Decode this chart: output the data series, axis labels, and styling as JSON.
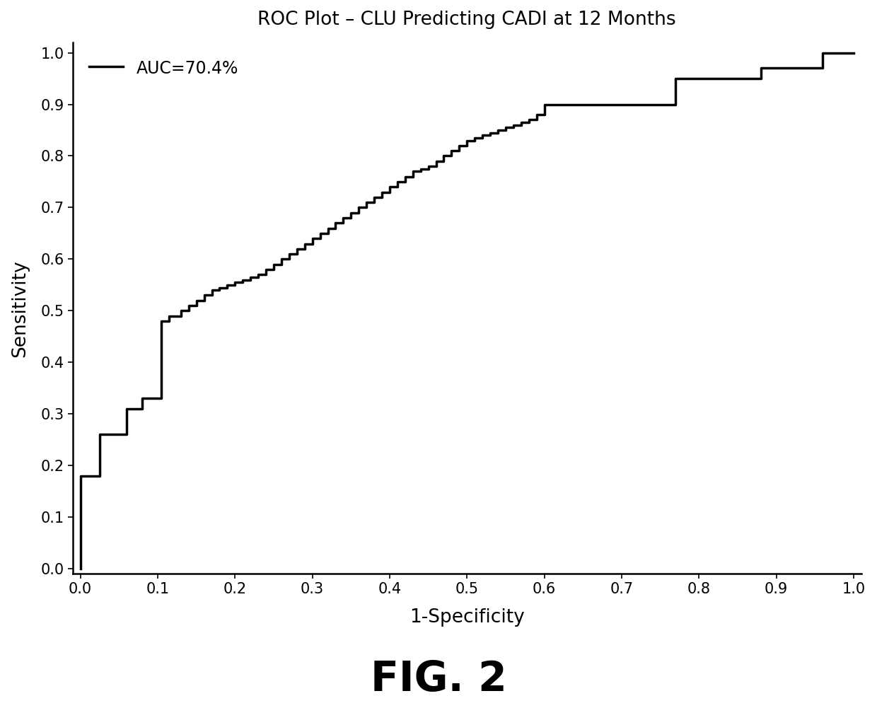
{
  "title": "ROC Plot – CLU Predicting CADI at 12 Months",
  "xlabel": "1-Specificity",
  "ylabel": "Sensitivity",
  "auc_label": "AUC=70.4%",
  "fig_label": "FIG. 2",
  "line_color": "#000000",
  "line_width": 2.5,
  "background_color": "#ffffff",
  "xlim": [
    0.0,
    1.0
  ],
  "ylim": [
    0.0,
    1.0
  ],
  "xticks": [
    0.0,
    0.1,
    0.2,
    0.3,
    0.4,
    0.5,
    0.6,
    0.7,
    0.8,
    0.9,
    1.0
  ],
  "yticks": [
    0.0,
    0.1,
    0.2,
    0.3,
    0.4,
    0.5,
    0.6,
    0.7,
    0.8,
    0.9,
    1.0
  ],
  "roc_fpr": [
    0.0,
    0.0,
    0.01,
    0.02,
    0.025,
    0.03,
    0.04,
    0.05,
    0.06,
    0.07,
    0.08,
    0.09,
    0.1,
    0.105,
    0.11,
    0.115,
    0.12,
    0.13,
    0.14,
    0.15,
    0.16,
    0.17,
    0.18,
    0.19,
    0.2,
    0.21,
    0.22,
    0.23,
    0.24,
    0.25,
    0.26,
    0.27,
    0.28,
    0.29,
    0.3,
    0.31,
    0.32,
    0.33,
    0.34,
    0.35,
    0.36,
    0.37,
    0.38,
    0.39,
    0.4,
    0.41,
    0.42,
    0.43,
    0.44,
    0.45,
    0.46,
    0.47,
    0.48,
    0.49,
    0.5,
    0.51,
    0.52,
    0.53,
    0.54,
    0.55,
    0.56,
    0.57,
    0.58,
    0.59,
    0.6,
    0.62,
    0.64,
    0.66,
    0.68,
    0.7,
    0.72,
    0.74,
    0.76,
    0.77,
    0.78,
    0.8,
    0.82,
    0.84,
    0.86,
    0.88,
    0.9,
    0.92,
    0.94,
    0.95,
    0.96,
    0.98,
    1.0
  ],
  "roc_tpr": [
    0.0,
    0.18,
    0.18,
    0.18,
    0.26,
    0.26,
    0.26,
    0.26,
    0.31,
    0.31,
    0.33,
    0.33,
    0.33,
    0.48,
    0.48,
    0.49,
    0.49,
    0.5,
    0.51,
    0.52,
    0.53,
    0.54,
    0.545,
    0.55,
    0.555,
    0.56,
    0.565,
    0.57,
    0.58,
    0.59,
    0.6,
    0.61,
    0.62,
    0.63,
    0.64,
    0.65,
    0.66,
    0.67,
    0.68,
    0.69,
    0.7,
    0.71,
    0.72,
    0.73,
    0.74,
    0.75,
    0.76,
    0.77,
    0.775,
    0.78,
    0.79,
    0.8,
    0.81,
    0.82,
    0.83,
    0.835,
    0.84,
    0.845,
    0.85,
    0.855,
    0.86,
    0.865,
    0.87,
    0.88,
    0.9,
    0.9,
    0.9,
    0.9,
    0.9,
    0.9,
    0.9,
    0.9,
    0.9,
    0.95,
    0.95,
    0.95,
    0.95,
    0.95,
    0.95,
    0.97,
    0.97,
    0.97,
    0.97,
    0.97,
    1.0,
    1.0,
    1.0
  ]
}
